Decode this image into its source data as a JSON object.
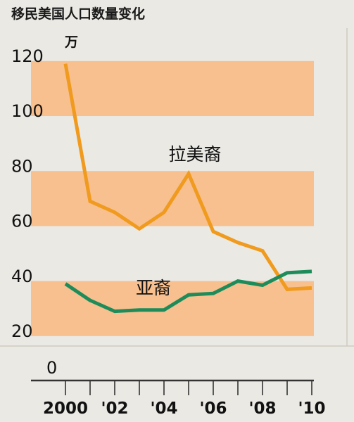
{
  "chart_data": {
    "type": "line",
    "title": "移民美国人口数量变化",
    "unit": "万",
    "x": [
      2000,
      2001,
      2002,
      2003,
      2004,
      2005,
      2006,
      2007,
      2008,
      2009,
      2010
    ],
    "xtick_values": [
      2000,
      2002,
      2004,
      2006,
      2008,
      2010
    ],
    "xtick_labels": [
      "2000",
      "'02",
      "'04",
      "'06",
      "'08",
      "'10"
    ],
    "yticks": [
      20,
      40,
      60,
      80,
      100,
      120
    ],
    "zero_label": "0",
    "ylim": [
      0,
      120
    ],
    "bands": [
      [
        18,
        38
      ],
      [
        58,
        78
      ],
      [
        98,
        118
      ]
    ],
    "series": [
      {
        "name": "拉美裔",
        "color": "#f09a1e",
        "values": [
          117,
          67,
          63,
          57,
          63,
          77,
          56,
          52,
          49,
          35,
          35.5
        ]
      },
      {
        "name": "亚裔",
        "color": "#1e8c5a",
        "values": [
          37,
          31,
          27,
          27.5,
          27.5,
          33,
          33.5,
          38,
          36.5,
          41,
          41.5
        ]
      }
    ],
    "colors": {
      "band": "#f7c08e",
      "background": "#eae9e4",
      "axis": "#333333"
    }
  }
}
